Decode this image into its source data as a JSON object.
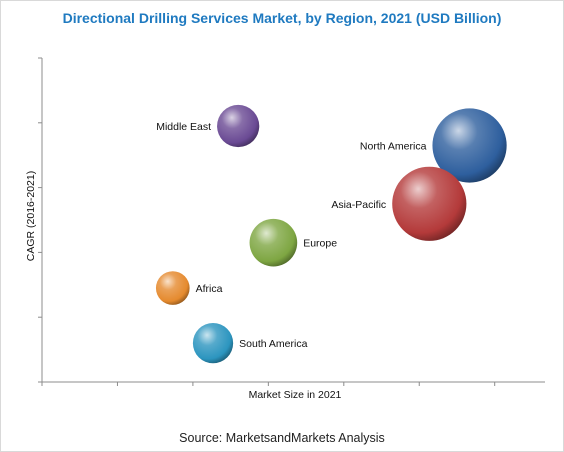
{
  "title": "Directional Drilling Services Market, by Region, 2021 (USD Billion)",
  "source": "Source: MarketsandMarkets Analysis",
  "chart_data": {
    "type": "scatter",
    "subtype": "bubble",
    "title": "Directional Drilling Services Market, by Region, 2021 (USD Billion)",
    "xlabel": "Market Size in 2021",
    "ylabel": "CAGR (2016-2021)",
    "xlim": [
      0,
      10
    ],
    "ylim": [
      0,
      10
    ],
    "axes_values_labeled": false,
    "grid": false,
    "legend": "none",
    "series": [
      {
        "name": "North America",
        "x": 8.5,
        "y": 7.3,
        "size": 3.4,
        "color": "#2e5f9e",
        "label_side": "left"
      },
      {
        "name": "Asia-Pacific",
        "x": 7.7,
        "y": 5.5,
        "size": 3.4,
        "color": "#b43a3a",
        "label_side": "left"
      },
      {
        "name": "Middle East",
        "x": 3.9,
        "y": 7.9,
        "size": 1.1,
        "color": "#6a4a94",
        "label_side": "left"
      },
      {
        "name": "Europe",
        "x": 4.6,
        "y": 4.3,
        "size": 1.4,
        "color": "#7ea642",
        "label_side": "right"
      },
      {
        "name": "Africa",
        "x": 2.6,
        "y": 2.9,
        "size": 0.7,
        "color": "#e58a2e",
        "label_side": "right"
      },
      {
        "name": "South America",
        "x": 3.4,
        "y": 1.2,
        "size": 1.0,
        "color": "#2c95bf",
        "label_side": "right"
      }
    ]
  }
}
